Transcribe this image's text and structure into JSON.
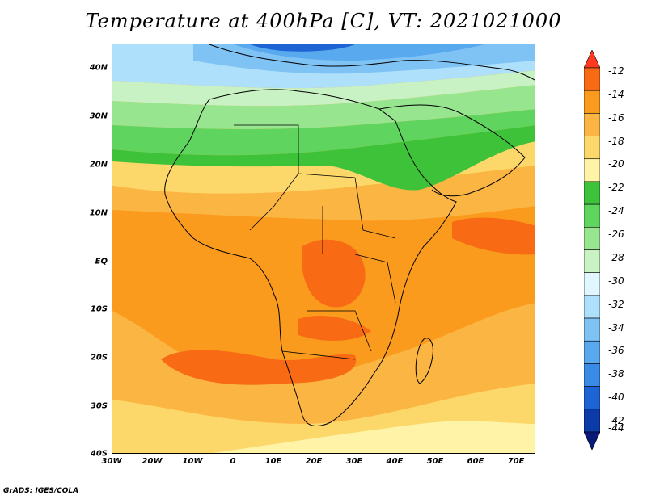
{
  "title": "Temperature at 400hPa [C], VT: 2021021000",
  "credit": "GrADS: IGES/COLA",
  "map": {
    "lon_range": [
      -30,
      75
    ],
    "lat_range": [
      -40,
      45
    ],
    "lat_labels": [
      "40N",
      "30N",
      "20N",
      "10N",
      "EQ",
      "10S",
      "20S",
      "30S",
      "40S"
    ],
    "lat_values": [
      40,
      30,
      20,
      10,
      0,
      -10,
      -20,
      -30,
      -40
    ],
    "lon_labels": [
      "30W",
      "20W",
      "10W",
      "0",
      "10E",
      "20E",
      "30E",
      "40E",
      "50E",
      "60E",
      "70E"
    ],
    "lon_values": [
      -30,
      -20,
      -10,
      0,
      10,
      20,
      30,
      40,
      50,
      60,
      70
    ]
  },
  "colorbar": {
    "labels": [
      "-12",
      "-14",
      "-16",
      "-18",
      "-20",
      "-22",
      "-24",
      "-26",
      "-28",
      "-30",
      "-32",
      "-34",
      "-36",
      "-38",
      "-40",
      "-42",
      "-44"
    ],
    "colors": [
      "#ff3a1e",
      "#f86b14",
      "#fa9b1e",
      "#fbb543",
      "#fcd76a",
      "#fef3a6",
      "#3ec23a",
      "#5fd560",
      "#98e58f",
      "#c8f2c3",
      "#e0f7ff",
      "#aee0fb",
      "#7fc3f5",
      "#58a9ee",
      "#3a8be6",
      "#1e63d3",
      "#0c3aa7",
      "#0a1878"
    ]
  }
}
